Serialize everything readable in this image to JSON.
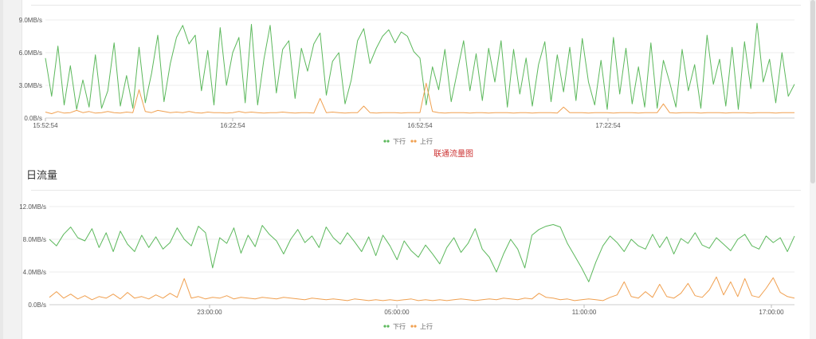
{
  "section_title": "日流量",
  "caption": "联通流量图",
  "colors": {
    "down": "#5cb85c",
    "up": "#f0a050",
    "grid": "#ececec",
    "axis_text": "#555555"
  },
  "chart_data": [
    {
      "type": "line",
      "title": "",
      "ylabel": "",
      "y_unit": "MB/s",
      "y_ticks": [
        "0.0B/s",
        "3.0MB/s",
        "6.0MB/s",
        "9.0MB/s"
      ],
      "ylim": [
        0,
        9
      ],
      "x_ticks": [
        "15:52:54",
        "16:22:54",
        "16:52:54",
        "17:22:54"
      ],
      "grid": true,
      "legend": {
        "placement": "bottom-center",
        "entries": [
          "下行",
          "上行"
        ]
      },
      "series": [
        {
          "name": "下行",
          "color": "#5cb85c",
          "values": [
            5.5,
            2.0,
            6.6,
            1.2,
            4.8,
            0.8,
            3.5,
            1.0,
            5.8,
            0.9,
            2.5,
            6.9,
            1.1,
            3.9,
            0.9,
            6.5,
            1.4,
            4.1,
            7.6,
            1.5,
            5.0,
            7.4,
            8.5,
            6.8,
            7.6,
            2.5,
            6.2,
            1.2,
            8.3,
            3.0,
            6.0,
            7.4,
            1.4,
            8.6,
            1.2,
            5.4,
            8.5,
            2.3,
            6.3,
            7.1,
            1.8,
            6.4,
            4.3,
            6.8,
            7.8,
            2.1,
            5.2,
            6.0,
            1.3,
            3.5,
            7.1,
            8.2,
            5.0,
            6.4,
            7.5,
            8.1,
            6.9,
            7.9,
            7.5,
            6.1,
            5.5,
            1.2,
            4.7,
            2.6,
            6.3,
            1.5,
            4.3,
            7.1,
            2.5,
            5.9,
            1.6,
            6.4,
            3.3,
            7.1,
            1.0,
            6.3,
            2.2,
            5.5,
            1.1,
            4.9,
            7.0,
            1.5,
            5.8,
            2.4,
            6.5,
            1.6,
            7.3,
            3.3,
            1.2,
            5.3,
            0.8,
            7.4,
            2.2,
            6.4,
            1.3,
            4.7,
            1.0,
            6.9,
            0.9,
            5.3,
            3.3,
            1.0,
            6.3,
            2.5,
            4.9,
            0.9,
            7.6,
            3.1,
            5.4,
            1.1,
            6.5,
            0.8,
            7.0,
            2.7,
            8.7,
            3.3,
            5.4,
            1.4,
            6.0,
            2.0,
            3.1
          ]
        },
        {
          "name": "上行",
          "color": "#f0a050",
          "values": [
            0.55,
            0.4,
            0.6,
            0.45,
            0.5,
            0.7,
            0.5,
            0.6,
            0.45,
            0.5,
            0.6,
            0.5,
            0.45,
            0.55,
            0.5,
            2.6,
            0.6,
            0.5,
            0.7,
            0.6,
            0.5,
            0.55,
            0.5,
            0.6,
            0.5,
            0.45,
            0.55,
            0.5,
            0.5,
            0.45,
            0.5,
            0.6,
            0.5,
            0.55,
            0.5,
            0.45,
            0.5,
            0.5,
            0.55,
            0.5,
            0.45,
            0.5,
            0.5,
            0.45,
            1.8,
            0.5,
            0.55,
            0.5,
            0.45,
            0.5,
            0.5,
            1.1,
            0.5,
            0.45,
            0.5,
            0.5,
            0.5,
            0.45,
            0.5,
            0.5,
            0.5,
            3.2,
            0.6,
            0.5,
            0.45,
            0.5,
            0.5,
            0.5,
            0.45,
            0.5,
            0.5,
            0.45,
            0.5,
            0.5,
            0.5,
            0.45,
            0.5,
            0.5,
            0.45,
            0.5,
            0.5,
            0.5,
            0.45,
            1.0,
            0.5,
            0.5,
            0.5,
            0.45,
            0.5,
            0.5,
            0.5,
            0.45,
            0.5,
            0.5,
            0.5,
            0.45,
            0.5,
            0.5,
            0.5,
            1.3,
            0.5,
            0.45,
            0.5,
            0.5,
            0.5,
            0.45,
            0.5,
            0.5,
            0.5,
            0.45,
            0.5,
            0.5,
            0.5,
            0.45,
            0.5,
            0.5,
            0.5,
            0.45,
            0.5,
            0.5,
            0.5
          ]
        }
      ]
    },
    {
      "type": "line",
      "title": "",
      "ylabel": "",
      "y_unit": "MB/s",
      "y_ticks": [
        "0.0B/s",
        "4.0MB/s",
        "8.0MB/s",
        "12.0MB/s"
      ],
      "ylim": [
        0,
        12
      ],
      "x_ticks": [
        "23:00:00",
        "05:00:00",
        "11:00:00",
        "17:00:00"
      ],
      "grid": true,
      "legend": {
        "placement": "bottom-center",
        "entries": [
          "下行",
          "上行"
        ]
      },
      "series": [
        {
          "name": "下行",
          "color": "#5cb85c",
          "values": [
            8.0,
            7.2,
            8.6,
            9.5,
            8.2,
            7.8,
            9.3,
            7.0,
            8.8,
            6.5,
            9.0,
            7.4,
            6.5,
            8.5,
            7.0,
            8.3,
            6.8,
            7.6,
            9.4,
            8.0,
            7.2,
            9.6,
            8.8,
            4.5,
            8.2,
            7.5,
            9.4,
            6.3,
            8.5,
            7.1,
            9.7,
            8.6,
            7.8,
            6.2,
            8.0,
            9.2,
            7.6,
            8.4,
            7.0,
            9.5,
            8.2,
            7.4,
            8.8,
            7.7,
            6.5,
            8.3,
            6.0,
            8.5,
            7.2,
            5.5,
            7.8,
            6.6,
            5.8,
            7.3,
            6.2,
            5.0,
            7.0,
            8.2,
            6.4,
            7.5,
            9.3,
            6.8,
            5.8,
            4.0,
            6.2,
            8.0,
            6.8,
            4.5,
            8.5,
            9.2,
            9.6,
            9.8,
            9.5,
            7.5,
            6.0,
            4.5,
            2.8,
            5.2,
            7.2,
            8.4,
            7.6,
            6.5,
            8.0,
            7.2,
            6.8,
            8.6,
            7.0,
            8.3,
            6.2,
            8.1,
            7.5,
            8.8,
            7.3,
            6.9,
            8.2,
            7.4,
            6.6,
            8.0,
            8.6,
            7.2,
            6.8,
            8.4,
            7.6,
            8.2,
            6.5,
            8.4
          ]
        },
        {
          "name": "上行",
          "color": "#f0a050",
          "values": [
            0.9,
            1.6,
            0.8,
            1.3,
            0.7,
            1.1,
            0.6,
            1.0,
            0.8,
            1.3,
            0.7,
            1.5,
            0.8,
            1.0,
            0.7,
            1.2,
            0.8,
            1.4,
            0.9,
            3.2,
            0.8,
            1.0,
            0.7,
            0.9,
            0.8,
            1.1,
            0.7,
            0.9,
            0.8,
            0.7,
            0.9,
            0.8,
            0.7,
            0.9,
            0.8,
            0.7,
            0.6,
            0.8,
            0.7,
            0.6,
            0.7,
            0.6,
            0.5,
            0.7,
            0.6,
            0.5,
            0.6,
            0.5,
            0.6,
            0.5,
            0.6,
            0.7,
            0.5,
            0.6,
            0.5,
            0.6,
            0.5,
            0.6,
            0.7,
            0.6,
            0.5,
            0.6,
            0.7,
            0.6,
            0.8,
            0.7,
            0.6,
            0.8,
            0.7,
            1.4,
            0.9,
            0.8,
            0.6,
            0.7,
            0.5,
            0.6,
            0.7,
            0.6,
            0.5,
            0.9,
            1.2,
            2.8,
            1.0,
            0.8,
            1.6,
            0.9,
            2.5,
            1.0,
            0.8,
            1.4,
            2.6,
            1.1,
            0.9,
            1.8,
            3.4,
            1.2,
            2.8,
            1.0,
            3.2,
            1.1,
            0.9,
            2.0,
            3.3,
            1.5,
            1.0,
            0.8
          ]
        }
      ]
    }
  ]
}
